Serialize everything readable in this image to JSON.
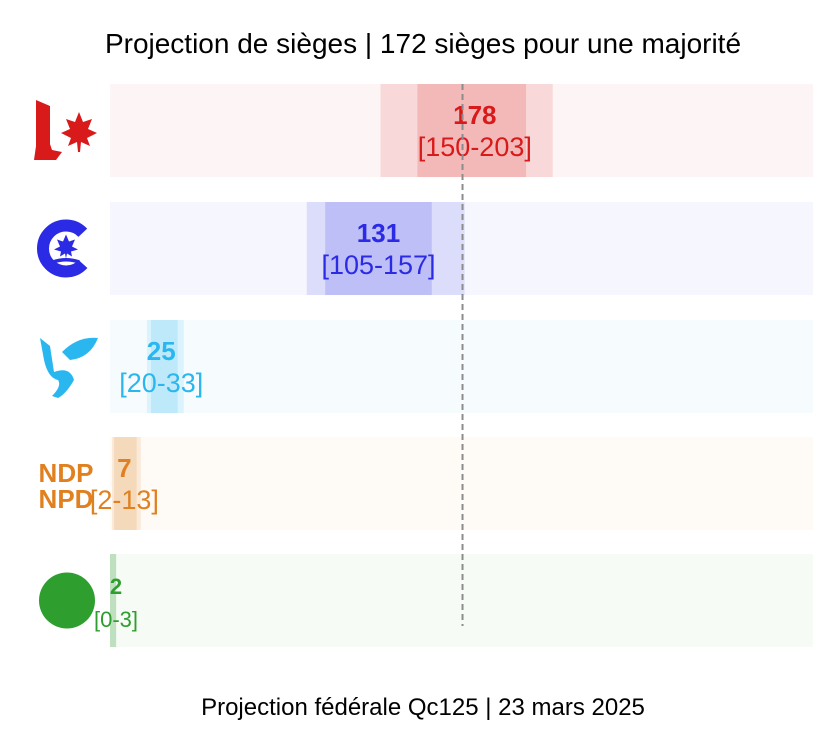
{
  "chart_data": {
    "type": "bar",
    "title": "Projection de sièges | 172 sièges pour une majorité",
    "footer": "Projection fédérale Qc125 | 23 mars 2025",
    "majority": 172,
    "xlim": [
      0,
      343
    ],
    "series": [
      {
        "party": "LPC",
        "logo": "liberal-maple-leaf-logo",
        "color": "#d91a1a",
        "value": 178,
        "low": 150,
        "high": 203,
        "outer_low": 132,
        "outer_high": 216,
        "value_label": "178",
        "range_label": "[150-203]"
      },
      {
        "party": "CPC",
        "logo": "conservative-c-logo",
        "color": "#2b2be6",
        "value": 131,
        "low": 105,
        "high": 157,
        "outer_low": 96,
        "outer_high": 173,
        "value_label": "131",
        "range_label": "[105-157]"
      },
      {
        "party": "BQ",
        "logo": "bloc-quebecois-logo",
        "color": "#2ab7f0",
        "value": 25,
        "low": 20,
        "high": 33,
        "outer_low": 18,
        "outer_high": 36,
        "value_label": "25",
        "range_label": "[20-33]"
      },
      {
        "party": "NDP",
        "logo": "ndp-npd-logo",
        "color": "#e0801f",
        "value": 7,
        "low": 2,
        "high": 13,
        "outer_low": 1,
        "outer_high": 15,
        "value_label": "7",
        "range_label": "[2-13]",
        "logo_text": [
          "NDP",
          "NPD"
        ]
      },
      {
        "party": "GPC",
        "logo": "green-circle-logo",
        "color": "#2e9e2e",
        "value": 2,
        "low": 0,
        "high": 3,
        "outer_low": 0,
        "outer_high": 3,
        "value_label": "2",
        "range_label": "[0-3]"
      }
    ]
  }
}
